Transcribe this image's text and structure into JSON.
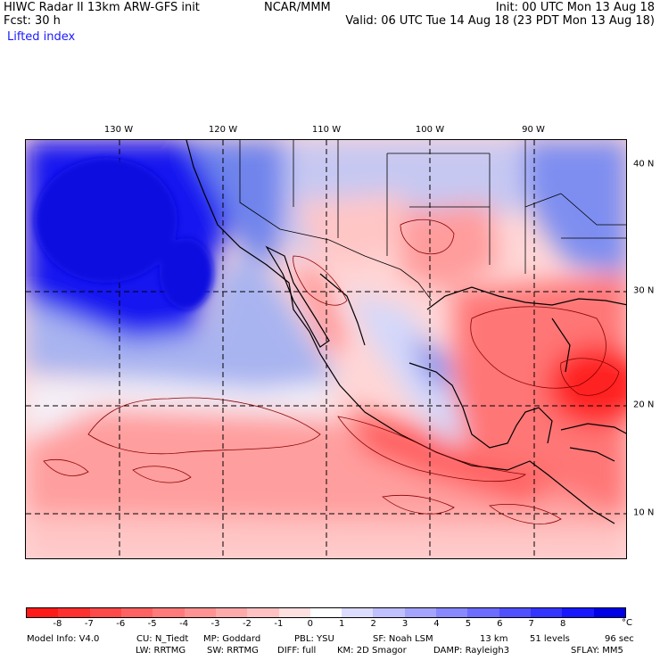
{
  "header": {
    "model": "HIWC Radar II 13km ARW-GFS init",
    "forecast": "Fcst:   30 h",
    "field": "Lifted index",
    "org": "NCAR/MMM",
    "init": "Init: 00 UTC Mon 13 Aug 18",
    "valid": "Valid: 06 UTC Tue 14 Aug 18 (23 PDT Mon 13 Aug 18)"
  },
  "map": {
    "lon_labels": [
      "130 W",
      "120 W",
      "110 W",
      "100 W",
      "90 W"
    ],
    "lat_labels": [
      "40 N",
      "30 N",
      "20 N",
      "10 N"
    ]
  },
  "colorbar": {
    "colors": [
      "#ff1a1a",
      "#ff3030",
      "#ff4a4a",
      "#ff6262",
      "#ff7a7a",
      "#ff9292",
      "#ffaaaa",
      "#ffc2c2",
      "#ffe0e0",
      "#ffffff",
      "#dcdcff",
      "#c0c0ff",
      "#a4a4ff",
      "#8888ff",
      "#6c6cff",
      "#5050ff",
      "#3434ff",
      "#1818ff",
      "#0000e6"
    ],
    "ticks": [
      "-8",
      "-7",
      "-6",
      "-5",
      "-4",
      "-3",
      "-2",
      "-1",
      "0",
      "1",
      "2",
      "3",
      "4",
      "5",
      "6",
      "7",
      "8"
    ],
    "unit": "°C"
  },
  "footer": {
    "line1": {
      "model_info": "Model Info: V4.0",
      "cu": "CU: N_Tiedt",
      "mp": "MP: Goddard",
      "pbl": "PBL: YSU",
      "sf": "SF: Noah LSM",
      "res": "13 km",
      "levels": "51 levels",
      "dt": "96 sec"
    },
    "line2": {
      "lw": "LW: RRTMG",
      "sw": "SW: RRTMG",
      "diff": "DIFF: full",
      "km": "KM: 2D Smagor",
      "damp": "DAMP: Rayleigh3",
      "sflay": "SFLAY: MM5"
    }
  }
}
